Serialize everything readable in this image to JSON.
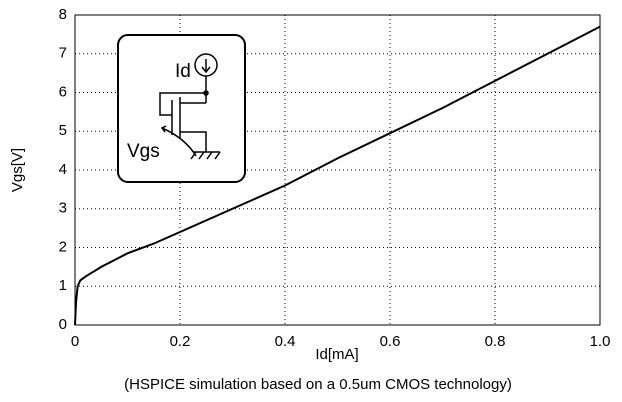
{
  "chart_data": {
    "type": "line",
    "x_label": "Id[mA]",
    "y_label": "Vgs[V]",
    "caption": "(HSPICE simulation based on a 0.5um CMOS technology)",
    "annotations": [
      "Id",
      "Vgs"
    ],
    "x": [
      0,
      0.002,
      0.005,
      0.01,
      0.02,
      0.05,
      0.1,
      0.15,
      0.2,
      0.3,
      0.4,
      0.5,
      0.6,
      0.7,
      0.8,
      0.9,
      1.0
    ],
    "series": [
      {
        "color": "#000000",
        "values": [
          0,
          0.6,
          1.0,
          1.15,
          1.25,
          1.5,
          1.85,
          2.1,
          2.4,
          3.0,
          3.6,
          4.3,
          4.95,
          5.6,
          6.3,
          7.0,
          7.7
        ]
      }
    ],
    "xlim": [
      0,
      1
    ],
    "xticks": [
      0,
      0.2,
      0.4,
      0.6,
      0.8,
      {
        "value": 1,
        "label": "1.0"
      }
    ],
    "ylim": [
      0,
      8
    ],
    "yticks": [
      0,
      1,
      2,
      3,
      4,
      5,
      6,
      7,
      8
    ],
    "grid": true
  }
}
